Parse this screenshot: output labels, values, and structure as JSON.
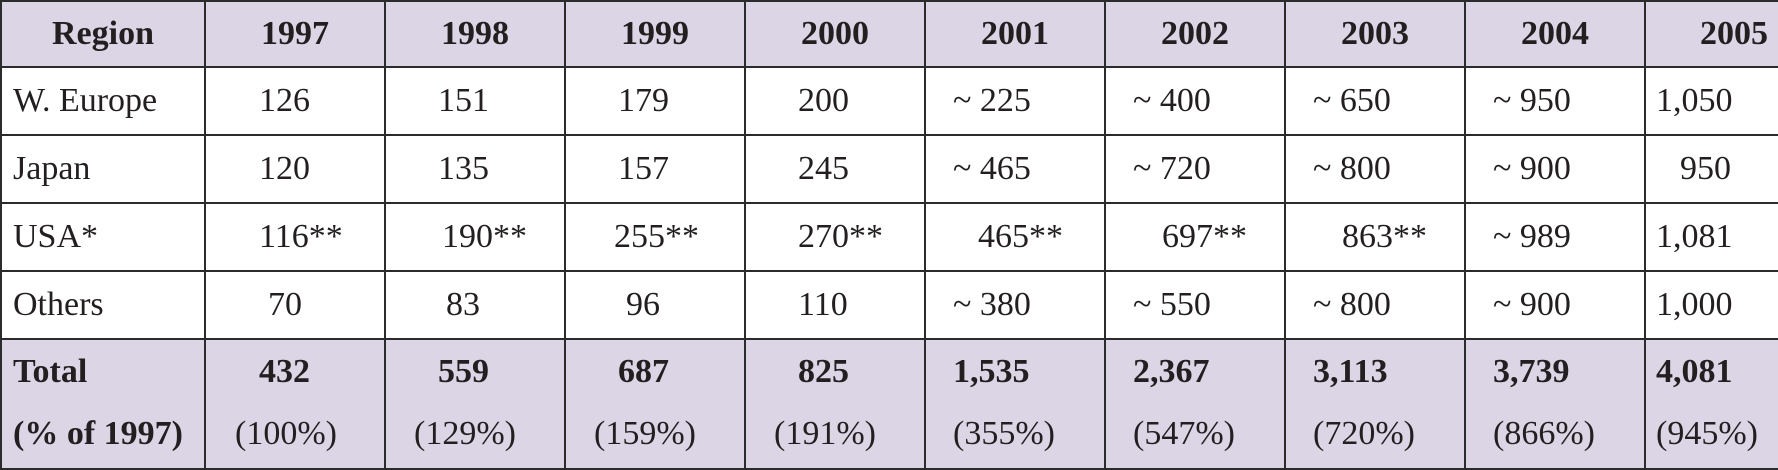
{
  "table": {
    "header": [
      "Region",
      "1997",
      "1998",
      "1999",
      "2000",
      "2001",
      "2002",
      "2003",
      "2004",
      "2005"
    ],
    "rows": [
      {
        "region": "W. Europe",
        "values": [
          "126",
          "151",
          "179",
          "200",
          "~ 225",
          "~ 400",
          "~ 650",
          "~ 950",
          "1,050"
        ]
      },
      {
        "region": "Japan",
        "values": [
          "120",
          "135",
          "157",
          "245",
          "~ 465",
          "~ 720",
          "~ 800",
          "~ 900",
          "950"
        ]
      },
      {
        "region": "USA*",
        "values": [
          "116**",
          "190**",
          "255**",
          "270**",
          "465**",
          "697**",
          "863**",
          "~ 989",
          "1,081"
        ]
      },
      {
        "region": "Others",
        "values": [
          "70",
          "83",
          "96",
          "110",
          "~ 380",
          "~ 550",
          "~ 800",
          "~ 900",
          "1,000"
        ]
      }
    ],
    "total": {
      "label": "Total",
      "sublabel": "(% of 1997)",
      "values": [
        "432",
        "559",
        "687",
        "825",
        "1,535",
        "2,367",
        "3,113",
        "3,739",
        "4,081"
      ],
      "percents": [
        "(100%)",
        "(129%)",
        "(159%)",
        "(191%)",
        "(355%)",
        "(547%)",
        "(720%)",
        "(866%)",
        "(945%)"
      ]
    }
  },
  "chart_data": {
    "type": "table",
    "columns": [
      "Region",
      "1997",
      "1998",
      "1999",
      "2000",
      "2001",
      "2002",
      "2003",
      "2004",
      "2005"
    ],
    "categories": [
      "1997",
      "1998",
      "1999",
      "2000",
      "2001",
      "2002",
      "2003",
      "2004",
      "2005"
    ],
    "series": [
      {
        "name": "W. Europe",
        "values": [
          126,
          151,
          179,
          200,
          225,
          400,
          650,
          950,
          1050
        ]
      },
      {
        "name": "Japan",
        "values": [
          120,
          135,
          157,
          245,
          465,
          720,
          800,
          900,
          950
        ]
      },
      {
        "name": "USA*",
        "values": [
          116,
          190,
          255,
          270,
          465,
          697,
          863,
          989,
          1081
        ]
      },
      {
        "name": "Others",
        "values": [
          70,
          83,
          96,
          110,
          380,
          550,
          800,
          900,
          1000
        ]
      },
      {
        "name": "Total",
        "values": [
          432,
          559,
          687,
          825,
          1535,
          2367,
          3113,
          3739,
          4081
        ]
      },
      {
        "name": "(% of 1997)",
        "values": [
          100,
          129,
          159,
          191,
          355,
          547,
          720,
          866,
          945
        ]
      }
    ],
    "title": "",
    "xlabel": "",
    "ylabel": ""
  },
  "colors": {
    "header_bg": "#dcd5e6",
    "body_bg": "#ffffff",
    "border": "#2b2b2b",
    "text": "#231f20"
  }
}
